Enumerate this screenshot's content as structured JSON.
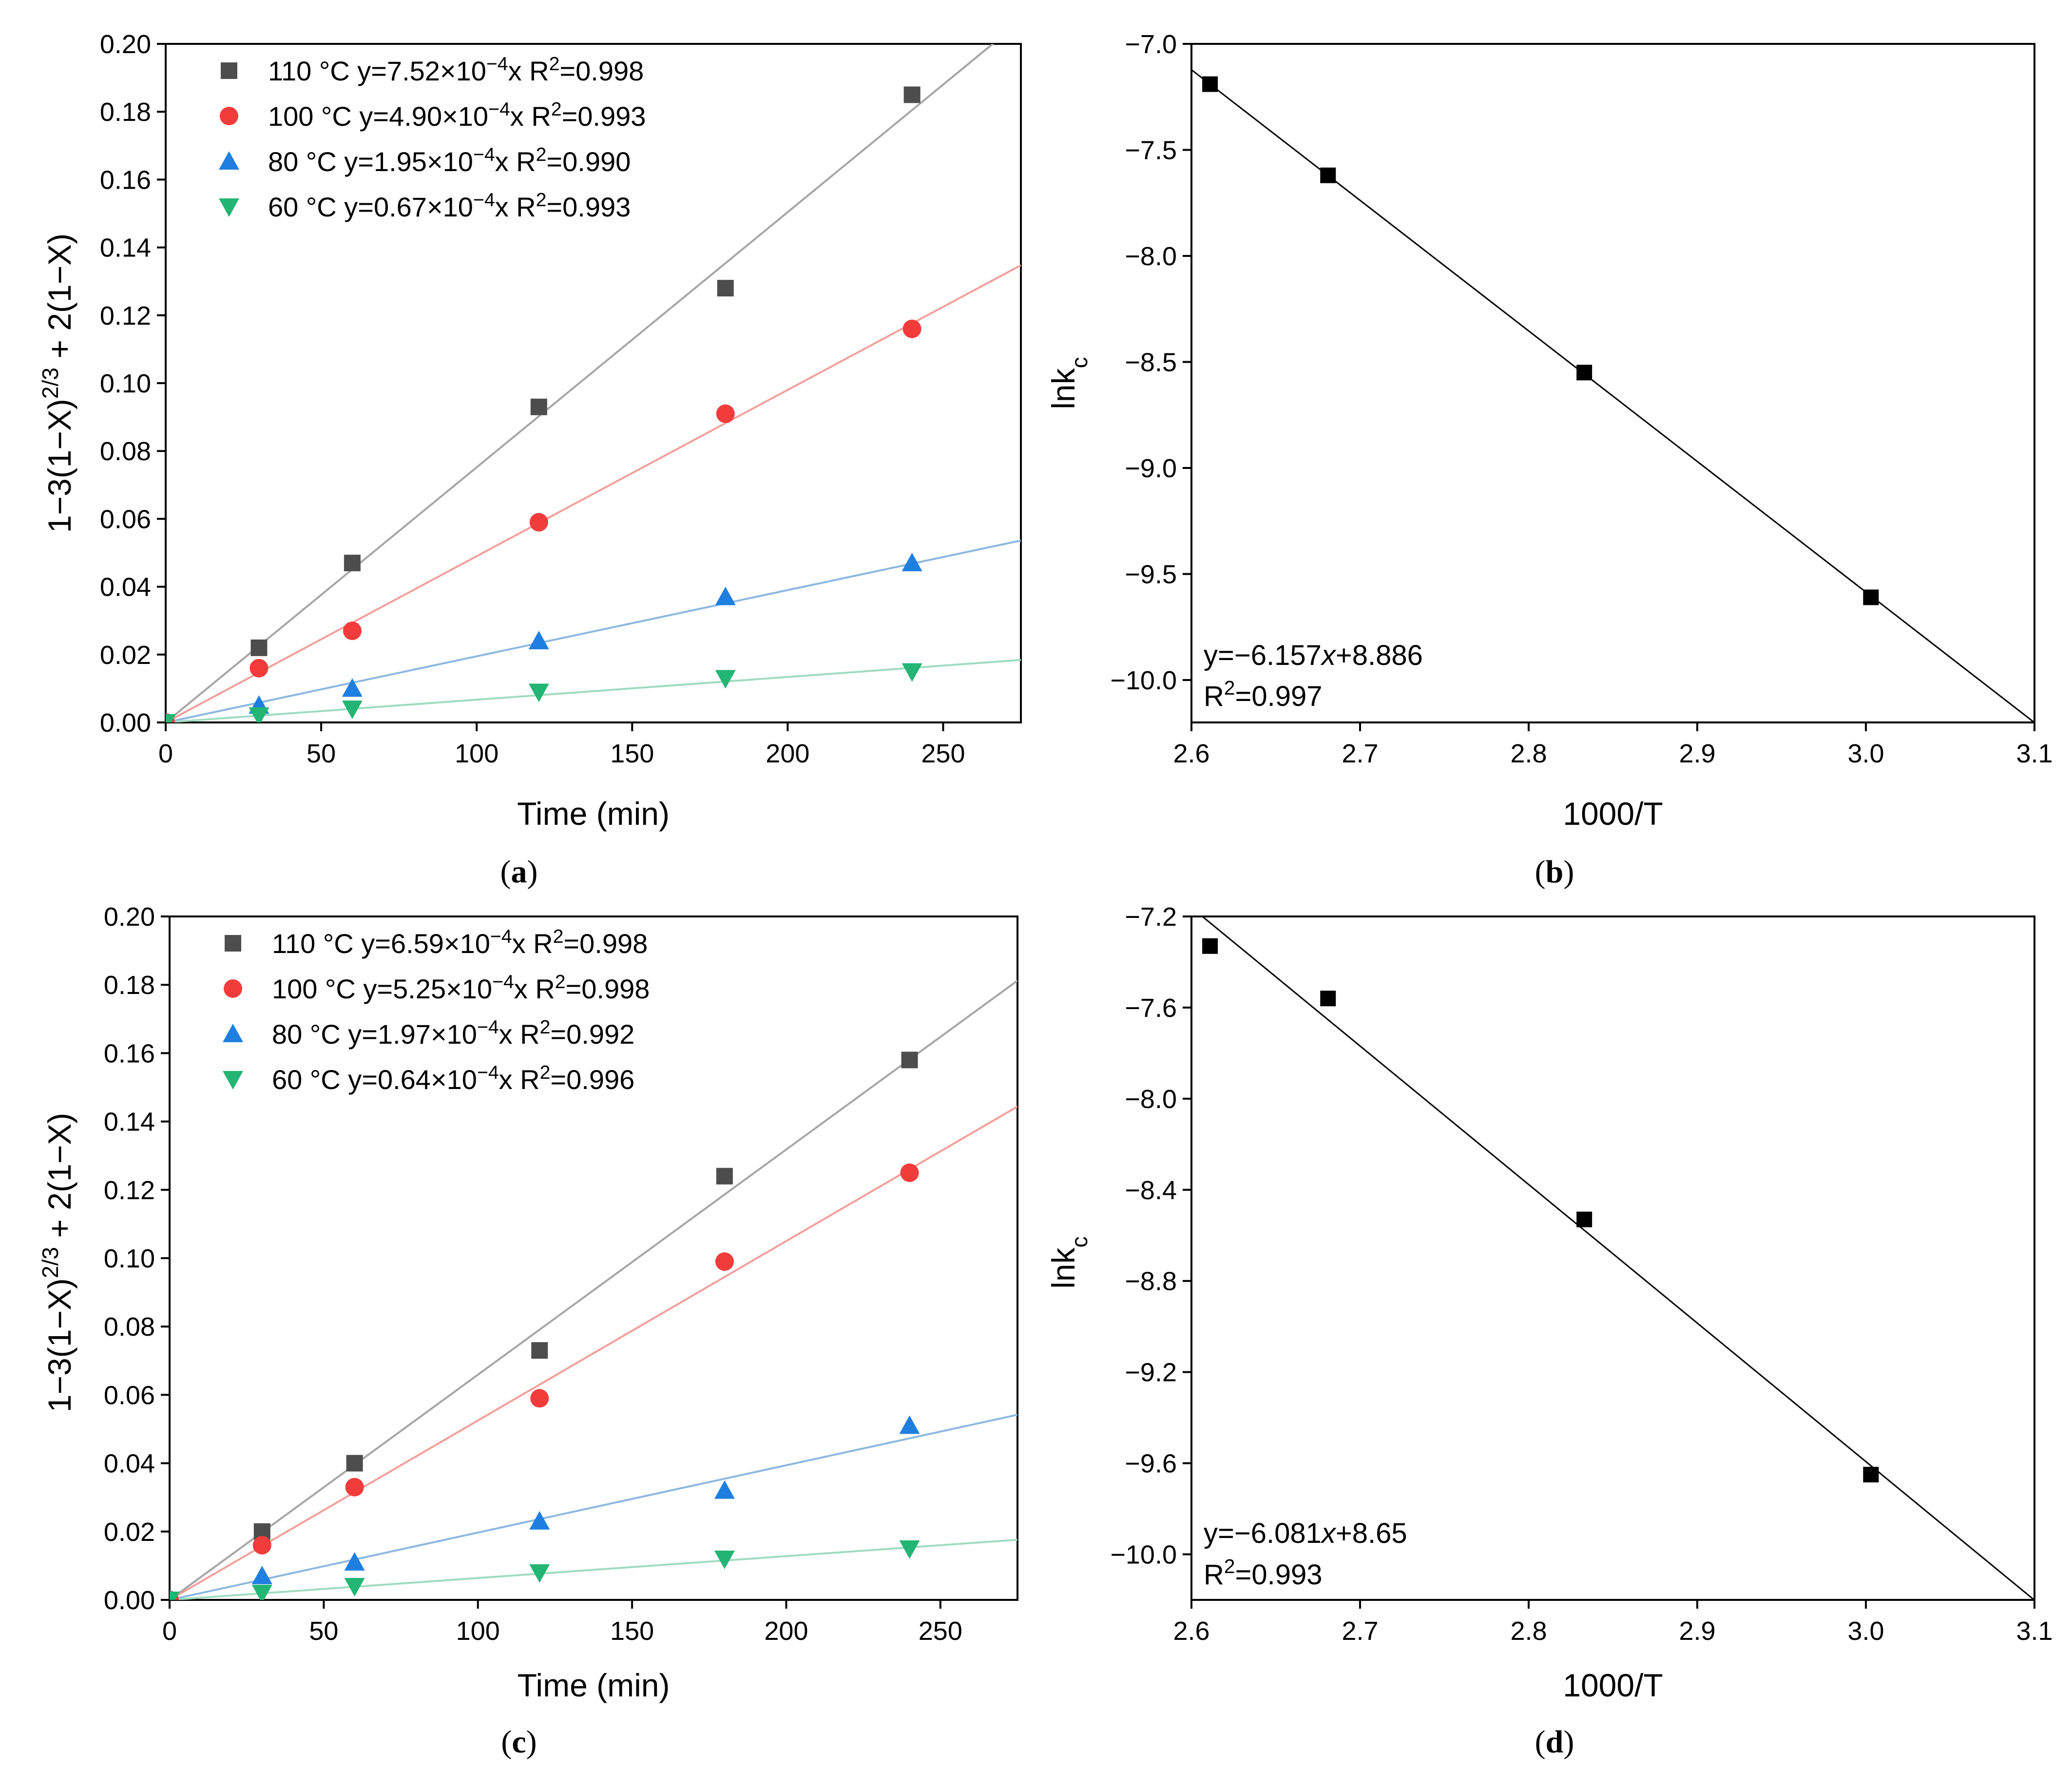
{
  "chart_data": [
    {
      "id": "a",
      "panel_label": "a",
      "type": "scatter",
      "xlabel": "Time (min)",
      "ylabel_parts": [
        "1−3(1−X)",
        "2/3",
        " + 2(1−X)"
      ],
      "xlim": [
        0,
        275
      ],
      "ylim": [
        0,
        0.2
      ],
      "xticks": [
        0,
        50,
        100,
        150,
        200,
        250
      ],
      "yticks": [
        0.0,
        0.02,
        0.04,
        0.06,
        0.08,
        0.1,
        0.12,
        0.14,
        0.16,
        0.18,
        0.2
      ],
      "xtick_labels": [
        "0",
        "50",
        "100",
        "150",
        "200",
        "250"
      ],
      "ytick_labels": [
        "0.00",
        "0.02",
        "0.04",
        "0.06",
        "0.08",
        "0.10",
        "0.12",
        "0.14",
        "0.16",
        "0.18",
        "0.20"
      ],
      "series": [
        {
          "name": "110 °C",
          "marker": "square",
          "color": "#4d4d4d",
          "fit_color": "#a6a6a6",
          "slope": 0.000752,
          "legend_parts": [
            "110 °C y=7.52×10",
            "−4",
            "x R",
            "2",
            "=0.998"
          ],
          "x": [
            0,
            30,
            60,
            120,
            180,
            240
          ],
          "y": [
            0,
            0.022,
            0.047,
            0.093,
            0.128,
            0.185
          ]
        },
        {
          "name": "100 °C",
          "marker": "circle",
          "color": "#f23c3c",
          "fit_color": "#f2a09a",
          "slope": 0.00049,
          "legend_parts": [
            "100 °C y=4.90×10",
            "−4",
            "x R",
            "2",
            "=0.993"
          ],
          "x": [
            0,
            30,
            60,
            120,
            180,
            240
          ],
          "y": [
            0,
            0.016,
            0.027,
            0.059,
            0.091,
            0.116
          ]
        },
        {
          "name": "80 °C",
          "marker": "triangle-up",
          "color": "#1f7fe0",
          "fit_color": "#8cb8e0",
          "slope": 0.000195,
          "legend_parts": [
            "80 °C y=1.95×10",
            "−4",
            "x R",
            "2",
            "=0.990"
          ],
          "x": [
            0,
            30,
            60,
            120,
            180,
            240
          ],
          "y": [
            0,
            0.005,
            0.01,
            0.024,
            0.037,
            0.047
          ]
        },
        {
          "name": "60 °C",
          "marker": "triangle-down",
          "color": "#22b573",
          "fit_color": "#9fdcbf",
          "slope": 6.7e-05,
          "legend_parts": [
            "60 °C y=0.67×10",
            "−4",
            "x R",
            "2",
            "=0.993"
          ],
          "x": [
            0,
            30,
            60,
            120,
            180,
            240
          ],
          "y": [
            0,
            0.002,
            0.004,
            0.009,
            0.013,
            0.015
          ]
        }
      ]
    },
    {
      "id": "b",
      "panel_label": "b",
      "type": "scatter",
      "xlabel": "1000/T",
      "ylabel_parts": [
        "lnk",
        "c"
      ],
      "xlim": [
        2.6,
        3.1
      ],
      "ylim": [
        -10.2,
        -7.0
      ],
      "xticks": [
        2.6,
        2.7,
        2.8,
        2.9,
        3.0,
        3.1
      ],
      "yticks": [
        -10.0,
        -9.5,
        -9.0,
        -8.5,
        -8.0,
        -7.5,
        -7.0
      ],
      "xtick_labels": [
        "2.6",
        "2.7",
        "2.8",
        "2.9",
        "3.0",
        "3.1"
      ],
      "ytick_labels": [
        "−10.0",
        "−9.5",
        "−9.0",
        "−8.5",
        "−8.0",
        "−7.5",
        "−7.0"
      ],
      "fit": {
        "slope": -6.157,
        "intercept": 8.886
      },
      "equation_parts": [
        "y=−6.157",
        "x",
        "+8.886"
      ],
      "r2_parts": [
        "R",
        "2",
        "=0.997"
      ],
      "points": {
        "x": [
          2.611,
          2.681,
          2.833,
          3.003
        ],
        "y": [
          -7.19,
          -7.62,
          -8.55,
          -9.61
        ]
      }
    },
    {
      "id": "c",
      "panel_label": "c",
      "type": "scatter",
      "xlabel": "Time (min)",
      "ylabel_parts": [
        "1−3(1−X)",
        "2/3",
        " + 2(1−X)"
      ],
      "xlim": [
        0,
        275
      ],
      "ylim": [
        0,
        0.2
      ],
      "xticks": [
        0,
        50,
        100,
        150,
        200,
        250
      ],
      "yticks": [
        0.0,
        0.02,
        0.04,
        0.06,
        0.08,
        0.1,
        0.12,
        0.14,
        0.16,
        0.18,
        0.2
      ],
      "xtick_labels": [
        "0",
        "50",
        "100",
        "150",
        "200",
        "250"
      ],
      "ytick_labels": [
        "0.00",
        "0.02",
        "0.04",
        "0.06",
        "0.08",
        "0.10",
        "0.12",
        "0.14",
        "0.16",
        "0.18",
        "0.20"
      ],
      "series": [
        {
          "name": "110 °C",
          "marker": "square",
          "color": "#4d4d4d",
          "fit_color": "#a6a6a6",
          "slope": 0.000659,
          "legend_parts": [
            "110 °C y=6.59×10",
            "−4",
            "x R",
            "2",
            "=0.998"
          ],
          "x": [
            0,
            30,
            60,
            120,
            180,
            240
          ],
          "y": [
            0,
            0.02,
            0.04,
            0.073,
            0.124,
            0.158
          ]
        },
        {
          "name": "100 °C",
          "marker": "circle",
          "color": "#f23c3c",
          "fit_color": "#f2a09a",
          "slope": 0.000525,
          "legend_parts": [
            "100 °C y=5.25×10",
            "−4",
            "x R",
            "2",
            "=0.998"
          ],
          "x": [
            0,
            30,
            60,
            120,
            180,
            240
          ],
          "y": [
            0,
            0.016,
            0.033,
            0.059,
            0.099,
            0.125
          ]
        },
        {
          "name": "80 °C",
          "marker": "triangle-up",
          "color": "#1f7fe0",
          "fit_color": "#8cb8e0",
          "slope": 0.000197,
          "legend_parts": [
            "80 °C y=1.97×10",
            "−4",
            "x R",
            "2",
            "=0.992"
          ],
          "x": [
            0,
            30,
            60,
            120,
            180,
            240
          ],
          "y": [
            0,
            0.007,
            0.011,
            0.023,
            0.032,
            0.051
          ]
        },
        {
          "name": "60 °C",
          "marker": "triangle-down",
          "color": "#22b573",
          "fit_color": "#9fdcbf",
          "slope": 6.4e-05,
          "legend_parts": [
            "60 °C y=0.64×10",
            "−4",
            "x R",
            "2",
            "=0.996"
          ],
          "x": [
            0,
            30,
            60,
            120,
            180,
            240
          ],
          "y": [
            0,
            0.002,
            0.004,
            0.008,
            0.012,
            0.015
          ]
        }
      ]
    },
    {
      "id": "d",
      "panel_label": "d",
      "type": "scatter",
      "xlabel": "1000/T",
      "ylabel_parts": [
        "lnk",
        "c"
      ],
      "xlim": [
        2.6,
        3.1
      ],
      "ylim": [
        -10.2,
        -7.2
      ],
      "xticks": [
        2.6,
        2.7,
        2.8,
        2.9,
        3.0,
        3.1
      ],
      "yticks": [
        -10.0,
        -9.6,
        -9.2,
        -8.8,
        -8.4,
        -8.0,
        -7.6,
        -7.2
      ],
      "xtick_labels": [
        "2.6",
        "2.7",
        "2.8",
        "2.9",
        "3.0",
        "3.1"
      ],
      "ytick_labels": [
        "−10.0",
        "−9.6",
        "−9.2",
        "−8.8",
        "−8.4",
        "−8.0",
        "−7.6",
        "−7.2"
      ],
      "fit": {
        "slope": -6.081,
        "intercept": 8.65
      },
      "equation_parts": [
        "y=−6.081",
        "x",
        "+8.65"
      ],
      "r2_parts": [
        "R",
        "2",
        "=0.993"
      ],
      "points": {
        "x": [
          2.611,
          2.681,
          2.833,
          3.003
        ],
        "y": [
          -7.33,
          -7.56,
          -8.53,
          -9.65
        ]
      }
    }
  ]
}
